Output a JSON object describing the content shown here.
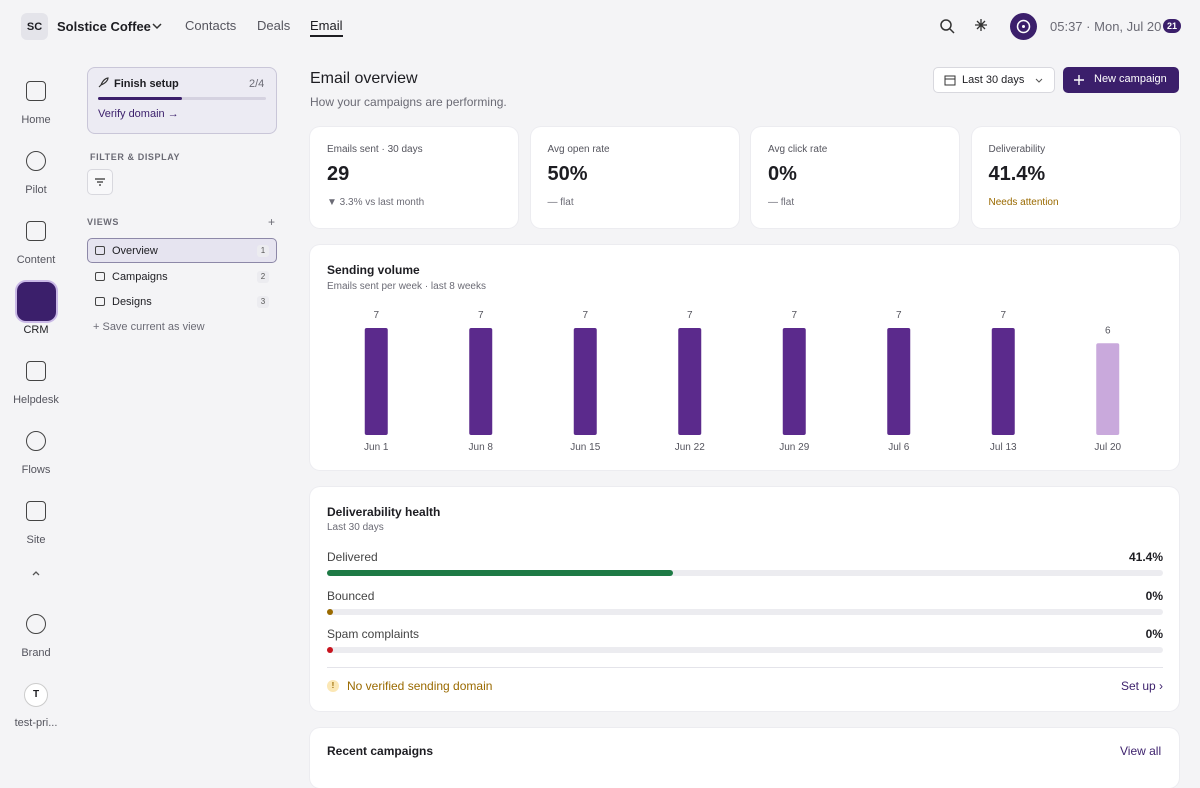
{
  "workspace": {
    "initials": "SC",
    "name": "Solstice Coffee"
  },
  "nav": [
    "Contacts",
    "Deals",
    "Email"
  ],
  "status": {
    "time": "05:37",
    "separator": "·",
    "date": "Mon, Jul 20",
    "badge": "21"
  },
  "rail": [
    "Home",
    "Pilot",
    "Content",
    "CRM",
    "Helpdesk",
    "Flows",
    "Site",
    "Brand"
  ],
  "user": {
    "initial": "T",
    "name": "test-pri..."
  },
  "setup": {
    "title": "Finish setup",
    "progress": "2/4",
    "link": "Verify domain →"
  },
  "filter": {
    "heading": "FILTER & DISPLAY"
  },
  "views": {
    "heading": "VIEWS",
    "add": "+",
    "items": [
      {
        "label": "Overview",
        "count": "1"
      },
      {
        "label": "Campaigns",
        "count": "2"
      },
      {
        "label": "Designs",
        "count": "3"
      }
    ],
    "save": "+ Save current as view"
  },
  "page": {
    "title": "Email overview",
    "subtitle": "How your campaigns are performing.",
    "range": "Last 30 days",
    "action": "New campaign"
  },
  "kpis": [
    {
      "label": "Emails sent · 30 days",
      "value": "29",
      "note": "▼ 3.3% vs last month"
    },
    {
      "label": "Avg open rate",
      "value": "50%",
      "note": "— flat"
    },
    {
      "label": "Avg click rate",
      "value": "0%",
      "note": "— flat"
    },
    {
      "label": "Deliverability",
      "value": "41.4%",
      "note": "Needs attention"
    }
  ],
  "chart_data": {
    "type": "bar",
    "title": "Sending volume",
    "subtitle": "Emails sent per week · last 8 weeks",
    "categories": [
      "Jun 1",
      "Jun 8",
      "Jun 15",
      "Jun 22",
      "Jun 29",
      "Jul 6",
      "Jul 13",
      "Jul 20"
    ],
    "values": [
      7,
      7,
      7,
      7,
      7,
      7,
      7,
      6
    ],
    "colors": [
      "#5b2a8c",
      "#5b2a8c",
      "#5b2a8c",
      "#5b2a8c",
      "#5b2a8c",
      "#5b2a8c",
      "#5b2a8c",
      "#c9a9dc"
    ],
    "ylim": [
      0,
      7
    ]
  },
  "deliverability": {
    "title": "Deliverability health",
    "subtitle": "Last 30 days",
    "rows": [
      {
        "label": "Delivered",
        "value": 41.4,
        "value_label": "41.4%",
        "color": "#1e7a45"
      },
      {
        "label": "Bounced",
        "value": 0,
        "value_label": "0%",
        "color": "#9a6a00"
      },
      {
        "label": "Spam complaints",
        "value": 0,
        "value_label": "0%",
        "color": "#c8141e"
      }
    ],
    "warning": "No verified sending domain",
    "action": "Set up ›"
  },
  "recent": {
    "title": "Recent campaigns",
    "action": "View all"
  }
}
